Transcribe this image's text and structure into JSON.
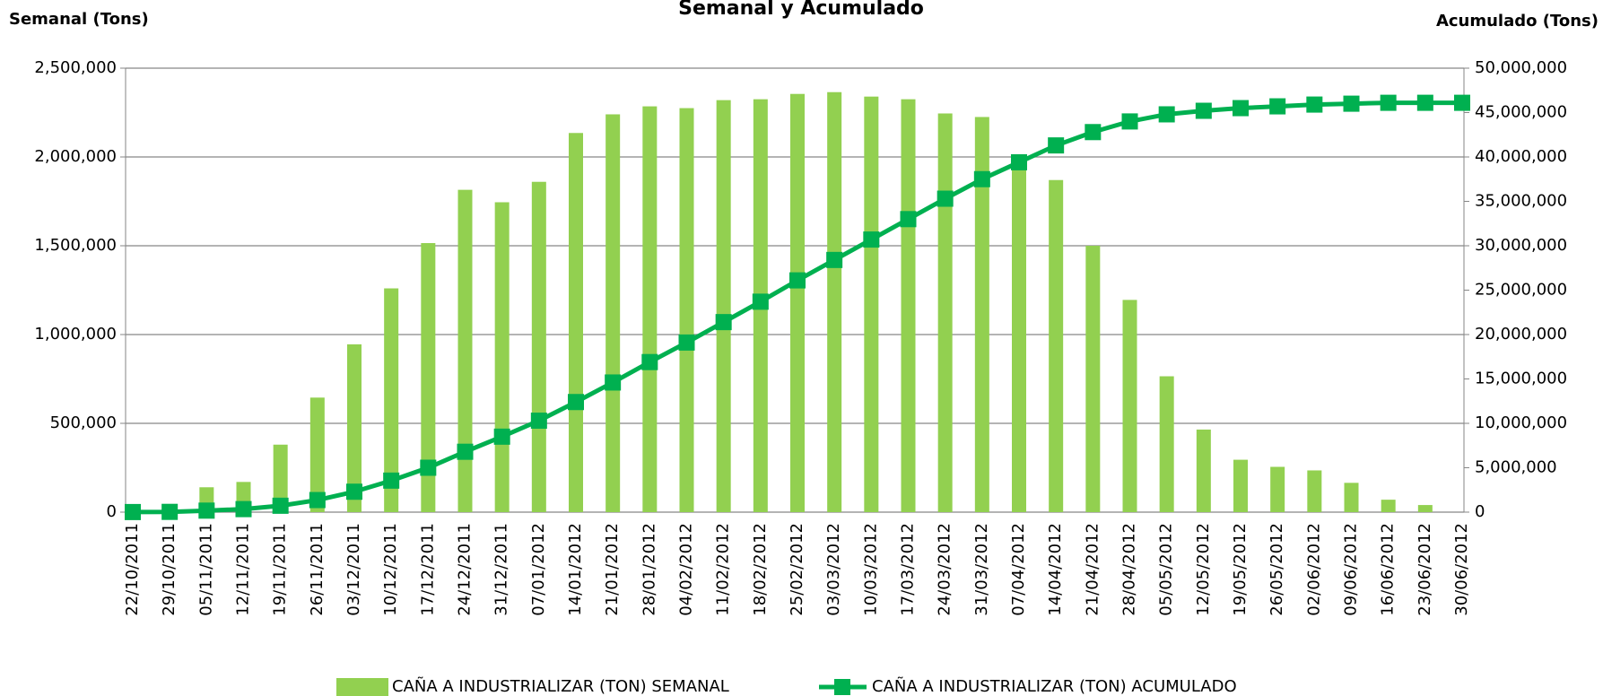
{
  "chart_data": {
    "type": "bar-line",
    "title": "Semanal y Acumulado",
    "y_label": "Semanal (Tons)",
    "y2_label": "Acumulado (Tons)",
    "categories": [
      "22/10/2011",
      "29/10/2011",
      "05/11/2011",
      "12/11/2011",
      "19/11/2011",
      "26/11/2011",
      "03/12/2011",
      "10/12/2011",
      "17/12/2011",
      "24/12/2011",
      "31/12/2011",
      "07/01/2012",
      "14/01/2012",
      "21/01/2012",
      "28/01/2012",
      "04/02/2012",
      "11/02/2012",
      "18/02/2012",
      "25/02/2012",
      "03/03/2012",
      "10/03/2012",
      "17/03/2012",
      "24/03/2012",
      "31/03/2012",
      "07/04/2012",
      "14/04/2012",
      "21/04/2012",
      "28/04/2012",
      "05/05/2012",
      "12/05/2012",
      "19/05/2012",
      "26/05/2012",
      "02/06/2012",
      "09/06/2012",
      "16/06/2012",
      "23/06/2012",
      "30/06/2012"
    ],
    "series": [
      {
        "name": "CAÑA A INDUSTRIALIZAR (TON) SEMANAL",
        "type": "bar",
        "color": "#92d050",
        "values": [
          10000,
          20000,
          140000,
          170000,
          380000,
          645000,
          945000,
          1260000,
          1515000,
          1815000,
          1745000,
          1860000,
          2135000,
          2240000,
          2285000,
          2275000,
          2320000,
          2325000,
          2355000,
          2365000,
          2340000,
          2325000,
          2245000,
          2225000,
          1980000,
          1870000,
          1500000,
          1195000,
          765000,
          465000,
          295000,
          255000,
          235000,
          165000,
          70000,
          40000,
          0
        ]
      },
      {
        "name": "CAÑA A INDUSTRIALIZAR (TON) ACUMULADO",
        "type": "line",
        "axis": "y2",
        "color": "#00b050",
        "values": [
          10000,
          30000,
          170000,
          340000,
          720000,
          1360000,
          2300000,
          3550000,
          5000000,
          6800000,
          8500000,
          10300000,
          12400000,
          14600000,
          16900000,
          19100000,
          21400000,
          23700000,
          26100000,
          28400000,
          30700000,
          33000000,
          35300000,
          37500000,
          39400000,
          41300000,
          42800000,
          44000000,
          44800000,
          45200000,
          45500000,
          45700000,
          45900000,
          46000000,
          46100000,
          46100000,
          46100000
        ]
      }
    ],
    "ylim": [
      0,
      2500000
    ],
    "yticks": [
      0,
      {
        "value": 500000,
        "label": "500,000"
      },
      {
        "value": 1000000,
        "label": "1,000,000"
      },
      {
        "value": 1500000,
        "label": "1,500,000"
      },
      {
        "value": 2000000,
        "label": "2,000,000"
      },
      {
        "value": 2500000,
        "label": "2,500,000"
      }
    ],
    "y2lim": [
      0,
      50000000
    ],
    "y2ticks": [
      0,
      {
        "value": 5000000,
        "label": "5,000,000"
      },
      {
        "value": 10000000,
        "label": "10,000,000"
      },
      {
        "value": 15000000,
        "label": "15,000,000"
      },
      {
        "value": 20000000,
        "label": "20,000,000"
      },
      {
        "value": 25000000,
        "label": "25,000,000"
      },
      {
        "value": 30000000,
        "label": "30,000,000"
      },
      {
        "value": 35000000,
        "label": "35,000,000"
      },
      {
        "value": 40000000,
        "label": "40,000,000"
      },
      {
        "value": 45000000,
        "label": "45,000,000"
      },
      {
        "value": 50000000,
        "label": "50,000,000"
      }
    ],
    "grid": true,
    "legend": "bottom"
  }
}
